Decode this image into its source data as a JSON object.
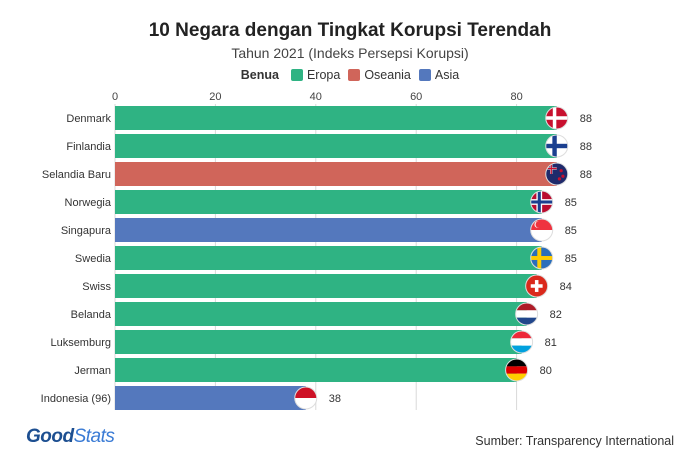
{
  "header": {
    "title": "10 Negara dengan Tingkat Korupsi Terendah",
    "subtitle": "Tahun 2021 (Indeks Persepsi Korupsi)"
  },
  "legend": {
    "title": "Benua",
    "items": [
      {
        "label": "Eropa",
        "color": "#2fb383"
      },
      {
        "label": "Oseania",
        "color": "#d0655a"
      },
      {
        "label": "Asia",
        "color": "#5478bd"
      }
    ]
  },
  "footer": {
    "logo_part1": "Good",
    "logo_part2": "Stats",
    "source": "Sumber: Transparency International"
  },
  "chart_data": {
    "type": "bar",
    "orientation": "horizontal",
    "xlim": [
      0,
      88
    ],
    "ticks": [
      0,
      20,
      40,
      60,
      80
    ],
    "grid": true,
    "legend_position": "top-center",
    "categories": [
      "Denmark",
      "Finlandia",
      "Selandia Baru",
      "Norwegia",
      "Singapura",
      "Swedia",
      "Swiss",
      "Belanda",
      "Luksemburg",
      "Jerman",
      "Indonesia (96)"
    ],
    "values": [
      88,
      88,
      88,
      85,
      85,
      85,
      84,
      82,
      81,
      80,
      38
    ],
    "continents": [
      "Eropa",
      "Eropa",
      "Oseania",
      "Eropa",
      "Asia",
      "Eropa",
      "Eropa",
      "Eropa",
      "Eropa",
      "Eropa",
      "Asia"
    ],
    "flags": [
      "denmark-flag",
      "finland-flag",
      "new-zealand-flag",
      "norway-flag",
      "singapore-flag",
      "sweden-flag",
      "switzerland-flag",
      "netherlands-flag",
      "luxembourg-flag",
      "germany-flag",
      "indonesia-flag"
    ]
  }
}
